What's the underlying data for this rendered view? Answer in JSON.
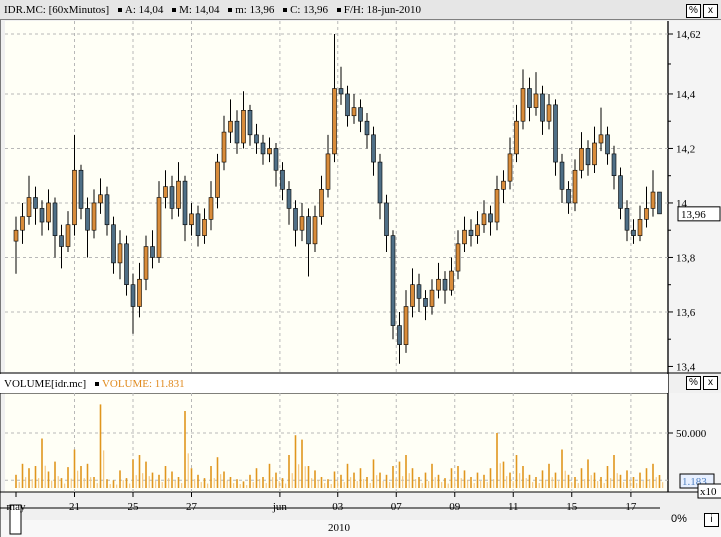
{
  "header": {
    "symbol": "IDR.MC: [60xMinutos]",
    "fields": [
      "A: 14,04",
      "M: 14,04",
      "m: 13,96",
      "C: 13,96",
      "F/H: 18-jun-2010"
    ],
    "percent_button": "%",
    "close_button": "x"
  },
  "volume_panel": {
    "title": "VOLUME[idr.mc]",
    "value_label": "VOLUME: 11.831",
    "last_value_box": "1.183",
    "multiplier": "x10",
    "percent_button": "%",
    "close_button": "x"
  },
  "footer": {
    "year": "2010",
    "percent": "0%",
    "info_button": "i"
  },
  "colors": {
    "up": "#d98c3a",
    "down": "#4f6f86",
    "volume": "#e0961e",
    "plot_bg": "#fffff6",
    "grid": "#b8b8b8"
  },
  "chart_data": [
    {
      "type": "candlestick",
      "title": "IDR.MC: [60xMinutos]",
      "ylim": [
        13.38,
        14.64
      ],
      "y_ticks": [
        "14,62",
        "14,4",
        "14,2",
        "14",
        "13,8",
        "13,6",
        "13,4"
      ],
      "y_tick_values": [
        14.62,
        14.4,
        14.2,
        14.0,
        13.8,
        13.6,
        13.4
      ],
      "last_price_label": "13,96",
      "last_price": 13.96,
      "grid": true,
      "x_ticks": [
        {
          "label": "may",
          "bar": 0
        },
        {
          "label": "21",
          "bar": 9
        },
        {
          "label": "25",
          "bar": 18
        },
        {
          "label": "27",
          "bar": 27
        },
        {
          "label": "jun",
          "bar": 40.6
        },
        {
          "label": "03",
          "bar": 49.5
        },
        {
          "label": "07",
          "bar": 58.5
        },
        {
          "label": "09",
          "bar": 67.5
        },
        {
          "label": "11",
          "bar": 76.5
        },
        {
          "label": "15",
          "bar": 85.5
        },
        {
          "label": "17",
          "bar": 94.6
        }
      ],
      "ohlc": [
        [
          13.86,
          13.95,
          13.74,
          13.9
        ],
        [
          13.9,
          14.0,
          13.85,
          13.95
        ],
        [
          13.95,
          14.1,
          13.92,
          14.02
        ],
        [
          14.02,
          14.06,
          13.92,
          13.98
        ],
        [
          13.98,
          14.01,
          13.88,
          13.93
        ],
        [
          13.93,
          14.05,
          13.9,
          14.0
        ],
        [
          14.0,
          14.02,
          13.8,
          13.88
        ],
        [
          13.88,
          13.92,
          13.76,
          13.84
        ],
        [
          13.84,
          13.97,
          13.82,
          13.92
        ],
        [
          13.92,
          14.25,
          13.88,
          14.12
        ],
        [
          14.12,
          14.14,
          13.94,
          13.98
        ],
        [
          13.98,
          14.02,
          13.8,
          13.9
        ],
        [
          13.9,
          14.05,
          13.87,
          14.0
        ],
        [
          14.0,
          14.09,
          13.96,
          14.03
        ],
        [
          14.03,
          14.06,
          13.88,
          13.92
        ],
        [
          13.92,
          13.95,
          13.74,
          13.78
        ],
        [
          13.78,
          13.9,
          13.72,
          13.85
        ],
        [
          13.85,
          13.88,
          13.66,
          13.7
        ],
        [
          13.7,
          13.74,
          13.52,
          13.62
        ],
        [
          13.62,
          13.78,
          13.58,
          13.72
        ],
        [
          13.72,
          13.88,
          13.68,
          13.84
        ],
        [
          13.84,
          13.9,
          13.76,
          13.8
        ],
        [
          13.8,
          14.08,
          13.78,
          14.02
        ],
        [
          14.02,
          14.12,
          13.98,
          14.06
        ],
        [
          14.06,
          14.1,
          13.94,
          13.98
        ],
        [
          13.98,
          14.15,
          13.95,
          14.08
        ],
        [
          14.08,
          14.1,
          13.86,
          13.92
        ],
        [
          13.92,
          14.0,
          13.88,
          13.96
        ],
        [
          13.96,
          13.99,
          13.84,
          13.88
        ],
        [
          13.88,
          13.98,
          13.85,
          13.94
        ],
        [
          13.94,
          14.08,
          13.9,
          14.02
        ],
        [
          14.02,
          14.18,
          13.98,
          14.15
        ],
        [
          14.15,
          14.32,
          14.12,
          14.26
        ],
        [
          14.26,
          14.38,
          14.22,
          14.3
        ],
        [
          14.3,
          14.34,
          14.18,
          14.22
        ],
        [
          14.22,
          14.41,
          14.2,
          14.34
        ],
        [
          14.34,
          14.36,
          14.21,
          14.25
        ],
        [
          14.25,
          14.29,
          14.18,
          14.22
        ],
        [
          14.22,
          14.25,
          14.14,
          14.18
        ],
        [
          14.18,
          14.24,
          14.15,
          14.2
        ],
        [
          14.2,
          14.22,
          14.06,
          14.12
        ],
        [
          14.12,
          14.15,
          14.01,
          14.05
        ],
        [
          14.05,
          14.08,
          13.92,
          13.98
        ],
        [
          13.98,
          14.01,
          13.84,
          13.9
        ],
        [
          13.9,
          14.0,
          13.86,
          13.95
        ],
        [
          13.95,
          13.98,
          13.73,
          13.85
        ],
        [
          13.85,
          13.99,
          13.82,
          13.95
        ],
        [
          13.95,
          14.1,
          13.92,
          14.05
        ],
        [
          14.05,
          14.25,
          14.02,
          14.18
        ],
        [
          14.18,
          14.62,
          14.15,
          14.42
        ],
        [
          14.42,
          14.5,
          14.36,
          14.4
        ],
        [
          14.4,
          14.43,
          14.28,
          14.32
        ],
        [
          14.32,
          14.4,
          14.29,
          14.35
        ],
        [
          14.35,
          14.38,
          14.26,
          14.3
        ],
        [
          14.3,
          14.33,
          14.2,
          14.25
        ],
        [
          14.25,
          14.28,
          14.1,
          14.15
        ],
        [
          14.15,
          14.18,
          13.94,
          14.0
        ],
        [
          14.0,
          14.03,
          13.82,
          13.88
        ],
        [
          13.88,
          13.9,
          13.5,
          13.55
        ],
        [
          13.55,
          13.6,
          13.41,
          13.48
        ],
        [
          13.48,
          13.68,
          13.45,
          13.62
        ],
        [
          13.62,
          13.76,
          13.58,
          13.7
        ],
        [
          13.7,
          13.74,
          13.6,
          13.65
        ],
        [
          13.65,
          13.68,
          13.57,
          13.62
        ],
        [
          13.62,
          13.72,
          13.59,
          13.68
        ],
        [
          13.68,
          13.78,
          13.65,
          13.72
        ],
        [
          13.72,
          13.75,
          13.63,
          13.68
        ],
        [
          13.68,
          13.8,
          13.66,
          13.75
        ],
        [
          13.75,
          13.9,
          13.72,
          13.85
        ],
        [
          13.85,
          13.95,
          13.82,
          13.9
        ],
        [
          13.9,
          13.94,
          13.84,
          13.88
        ],
        [
          13.88,
          13.97,
          13.85,
          13.92
        ],
        [
          13.92,
          14.01,
          13.89,
          13.96
        ],
        [
          13.96,
          13.99,
          13.88,
          13.93
        ],
        [
          13.93,
          14.1,
          13.9,
          14.05
        ],
        [
          14.05,
          14.12,
          14.0,
          14.08
        ],
        [
          14.08,
          14.24,
          14.05,
          14.18
        ],
        [
          14.18,
          14.36,
          14.15,
          14.3
        ],
        [
          14.3,
          14.49,
          14.27,
          14.42
        ],
        [
          14.42,
          14.46,
          14.3,
          14.35
        ],
        [
          14.35,
          14.48,
          14.32,
          14.4
        ],
        [
          14.4,
          14.43,
          14.25,
          14.3
        ],
        [
          14.3,
          14.4,
          14.27,
          14.36
        ],
        [
          14.36,
          14.38,
          14.1,
          14.15
        ],
        [
          14.15,
          14.18,
          14.0,
          14.05
        ],
        [
          14.05,
          14.08,
          13.96,
          14.0
        ],
        [
          14.0,
          14.16,
          13.97,
          14.12
        ],
        [
          14.12,
          14.26,
          14.09,
          14.2
        ],
        [
          14.2,
          14.23,
          14.1,
          14.14
        ],
        [
          14.14,
          14.28,
          14.11,
          14.22
        ],
        [
          14.22,
          14.35,
          14.19,
          14.25
        ],
        [
          14.25,
          14.28,
          14.14,
          14.18
        ],
        [
          14.18,
          14.21,
          14.05,
          14.1
        ],
        [
          14.1,
          14.13,
          13.94,
          13.98
        ],
        [
          13.98,
          14.01,
          13.86,
          13.9
        ],
        [
          13.9,
          13.94,
          13.85,
          13.88
        ],
        [
          13.88,
          13.99,
          13.86,
          13.94
        ],
        [
          13.94,
          14.06,
          13.91,
          13.98
        ],
        [
          13.98,
          14.12,
          13.95,
          14.04
        ],
        [
          14.04,
          14.04,
          13.96,
          13.96
        ]
      ]
    },
    {
      "type": "bar",
      "title": "VOLUME[idr.mc]",
      "ylim": [
        0,
        85000
      ],
      "y_ticks": [
        "50.000"
      ],
      "y_tick_values": [
        50000
      ],
      "grid": true,
      "values": [
        12000,
        22000,
        18000,
        20000,
        45000,
        15000,
        24000,
        9000,
        19000,
        35000,
        20000,
        22000,
        10000,
        76000,
        8000,
        7000,
        16000,
        9000,
        26000,
        30000,
        24000,
        14000,
        12000,
        20000,
        15000,
        10000,
        70000,
        18000,
        12000,
        9000,
        20000,
        28000,
        15000,
        10000,
        8000,
        6000,
        12000,
        18000,
        10000,
        22000,
        14000,
        9000,
        30000,
        48000,
        44000,
        20000,
        16000,
        10000,
        8000,
        15000,
        12000,
        22000,
        14000,
        18000,
        10000,
        26000,
        14000,
        12000,
        20000,
        24000,
        30000,
        18000,
        10000,
        14000,
        22000,
        12000,
        9000,
        18000,
        20000,
        16000,
        10000,
        14000,
        12000,
        18000,
        50000,
        24000,
        14000,
        30000,
        20000,
        12000,
        10000,
        16000,
        22000,
        14000,
        35000,
        12000,
        10000,
        18000,
        26000,
        14000,
        10000,
        20000,
        30000,
        12000,
        16000,
        10000,
        14000,
        18000,
        22000,
        11831
      ]
    }
  ]
}
